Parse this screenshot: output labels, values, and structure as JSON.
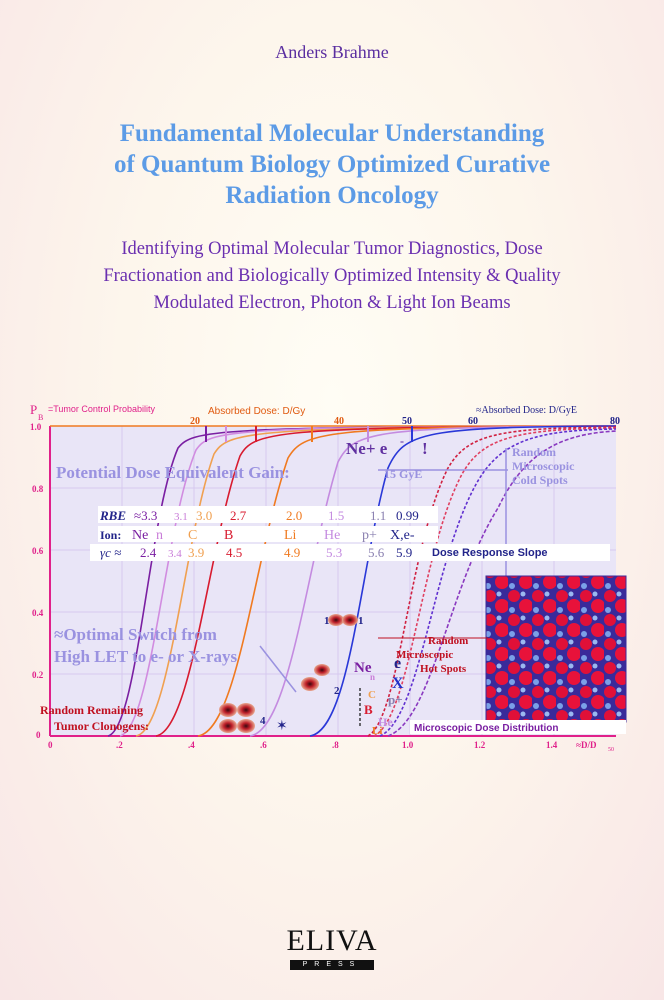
{
  "author": "Anders Brahme",
  "title_lines": [
    "Fundamental Molecular Understanding",
    "of Quantum Biology Optimized Curative",
    "Radiation Oncology"
  ],
  "subtitle_lines": [
    "Identifying Optimal Molecular Tumor Diagnostics, Dose",
    "Fractionation and Biologically Optimized Intensity & Quality",
    "Modulated Electron, Photon & Light Ion Beams"
  ],
  "figure": {
    "pb_label": "P",
    "pb_sub": "B",
    "pb_text": "=Tumor Control Probability",
    "top_axis_label": "Absorbed Dose: D/Gy",
    "top_axis_label2": "≈Absorbed Dose: D/GyE",
    "top_ticks": [
      "20",
      "40",
      "50",
      "60",
      "80"
    ],
    "y_ticks": [
      "1.0",
      "0.8",
      "0.6",
      "0.4",
      "0.2",
      "0"
    ],
    "x_ticks": [
      "0",
      ".2",
      ".4",
      ".6",
      ".8",
      "1.0",
      "1.2",
      "1.4"
    ],
    "x_axis_label": "≈D/D",
    "x_axis_sub": "50",
    "ne_label": "Ne+ e",
    "ne_sup": "-",
    "ne_excl": "!",
    "gain_label": "Potential Dose Equivalent Gain:",
    "gain_value": "15 GyE",
    "cold_spots": [
      "Random",
      "Microscopic",
      "Cold Spots"
    ],
    "rbe_label": "RBE",
    "rbe_values": [
      "≈3.3",
      "3.1",
      "3.0",
      "2.7",
      "2.0",
      "1.5",
      "1.1",
      "0.99"
    ],
    "ion_label": "Ion:",
    "ion_values": [
      "Ne",
      "n",
      "C",
      "B",
      "Li",
      "He",
      "p+",
      "X,e-"
    ],
    "gamma_label": "γc ≈",
    "gamma_values": [
      "2.4",
      "3.4",
      "3.9",
      "4.5",
      "4.9",
      "5.3",
      "5.6",
      "5.9"
    ],
    "slope_label": "Dose Response Slope",
    "switch_line1": "≈Optimal Switch from",
    "switch_line2": "High LET to e- or X-rays",
    "hot_spots": [
      "Random",
      "Microscopic",
      "Hot Spots"
    ],
    "clonogens_line1": "Random Remaining",
    "clonogens_line2": "Tumor Clonogens:",
    "micro_dist": "Microscopic Dose Distribution",
    "cell_numbers": [
      "1",
      "1",
      "2",
      "4"
    ],
    "curve_labels": [
      "Ne",
      "n",
      "e",
      "X",
      "B",
      "p+",
      "He",
      "C",
      "Li"
    ],
    "colors": {
      "ne": "#7a1fa2",
      "n": "#c97dd8",
      "c": "#f0a050",
      "b": "#d81b2f",
      "li": "#f07a20",
      "he": "#c48be0",
      "p": "#6030d0",
      "x": "#2230c8",
      "e": "#22248a",
      "axis": "#e0208a",
      "grid": "#d9c6f0"
    }
  },
  "logo": {
    "brand": "ELIVA",
    "press": "PRESS"
  }
}
